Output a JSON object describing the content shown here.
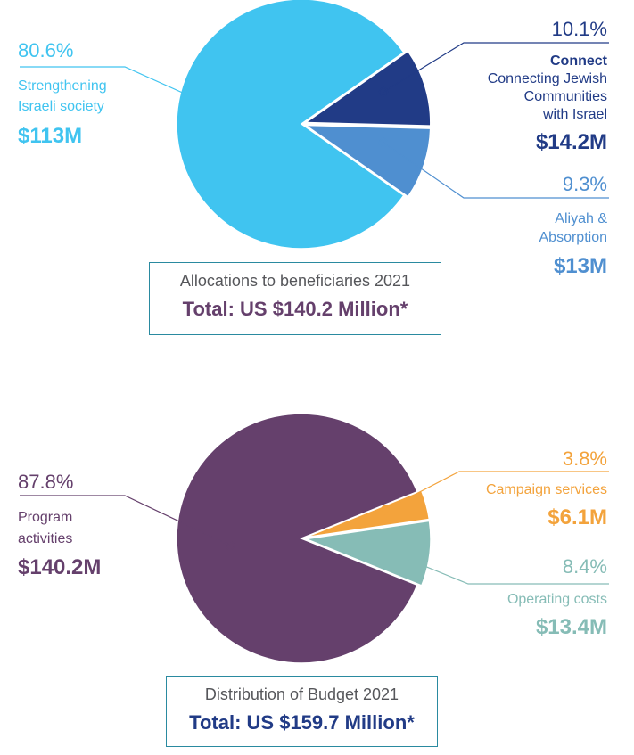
{
  "chart_data": [
    {
      "type": "pie",
      "title": "Allocations to beneficiaries 2021",
      "total_label": "Total: US $140.2 Million*",
      "slices": [
        {
          "pct_label": "80.6%",
          "percent": 80.6,
          "label_lines": [
            "Strengthening",
            "Israeli society"
          ],
          "value_label": "$113M",
          "value_m": 113,
          "color": "#40c4f0",
          "text_color": "#40c4f0"
        },
        {
          "pct_label": "10.1%",
          "percent": 10.1,
          "label_bold": "Connect",
          "label_lines": [
            "Connecting Jewish",
            "Communities",
            "with Israel"
          ],
          "value_label": "$14.2M",
          "value_m": 14.2,
          "color": "#213b86",
          "text_color": "#213b86"
        },
        {
          "pct_label": "9.3%",
          "percent": 9.3,
          "label_lines": [
            "Aliyah &",
            "Absorption"
          ],
          "value_label": "$13M",
          "value_m": 13,
          "color": "#4f8fd0",
          "text_color": "#4f8fd0"
        }
      ]
    },
    {
      "type": "pie",
      "title": "Distribution of Budget 2021",
      "total_label": "Total: US $159.7 Million*",
      "slices": [
        {
          "pct_label": "87.8%",
          "percent": 87.8,
          "label_lines": [
            "Program",
            "activities"
          ],
          "value_label": "$140.2M",
          "value_m": 140.2,
          "color": "#65406c",
          "text_color": "#65406c"
        },
        {
          "pct_label": "3.8%",
          "percent": 3.8,
          "label_lines": [
            "Campaign services"
          ],
          "value_label": "$6.1M",
          "value_m": 6.1,
          "color": "#f3a33c",
          "text_color": "#f3a33c"
        },
        {
          "pct_label": "8.4%",
          "percent": 8.4,
          "label_lines": [
            "Operating costs"
          ],
          "value_label": "$13.4M",
          "value_m": 13.4,
          "color": "#86bcb6",
          "text_color": "#86bcb6"
        }
      ]
    }
  ],
  "colors": {
    "box_border": "#2a8aa0",
    "title1_total": "#65406c",
    "title2_total": "#213b86",
    "box_title": "#55565a"
  }
}
